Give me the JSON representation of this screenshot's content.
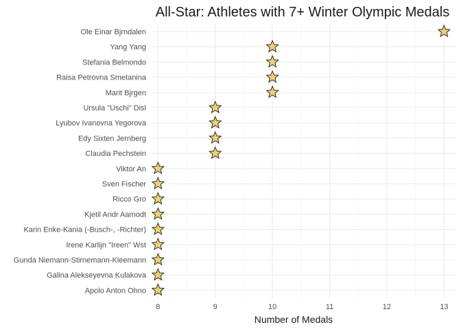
{
  "chart_data": {
    "type": "scatter",
    "title": "All-Star: Athletes with 7+ Winter Olympic Medals",
    "xlabel": "Number of Medals",
    "ylabel": "",
    "xlim": [
      7.9,
      13.2
    ],
    "x_ticks": [
      8,
      9,
      10,
      11,
      12,
      13
    ],
    "grid": true,
    "marker": "star",
    "marker_color": "#f0d06c",
    "categories": [
      "Ole Einar Bjrndalen",
      "Yang Yang",
      "Stefania Belmondo",
      "Raisa Petrovna Smetanina",
      "Marit Bjrgen",
      "Ursula \"Uschi\" Disl",
      "Lyubov Ivanovna Yegorova",
      "Edy Sixten Jernberg",
      "Claudia Pechstein",
      "Viktor An",
      "Sven Fischer",
      "Ricco Gro",
      "Kjetil Andr Aamodt",
      "Karin Enke-Kania (-Busch-, -Richter)",
      "Irene Karlijn \"Ireen\" Wst",
      "Gunda Niemann-Stirnemann-Kleemann",
      "Galina Alekseyevna Kulakova",
      "Apolo Anton Ohno"
    ],
    "values": [
      13,
      10,
      10,
      10,
      10,
      9,
      9,
      9,
      9,
      8,
      8,
      8,
      8,
      8,
      8,
      8,
      8,
      8
    ]
  }
}
